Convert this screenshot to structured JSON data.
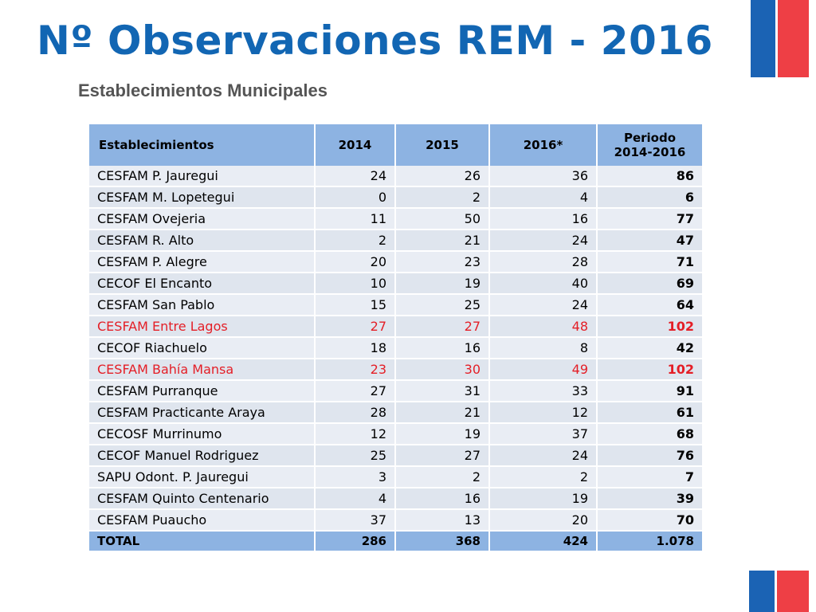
{
  "title": "Nº Observaciones REM - 2016",
  "subtitle": "Establecimientos Municipales",
  "colors": {
    "title": "#1266b3",
    "header": "#8db3e2",
    "highlight": "#e41e26",
    "flag_blue": "#1b63b4",
    "flag_red": "#ee3f45"
  },
  "table": {
    "headers": [
      "Establecimientos",
      "2014",
      "2015",
      "2016*",
      "Periodo\n2014-2016"
    ],
    "rows": [
      {
        "name": "CESFAM P. Jauregui",
        "y2014": "24",
        "y2015": "26",
        "y2016": "36",
        "total": "86",
        "highlight": false
      },
      {
        "name": "CESFAM M. Lopetegui",
        "y2014": "0",
        "y2015": "2",
        "y2016": "4",
        "total": "6",
        "highlight": false
      },
      {
        "name": "CESFAM Ovejeria",
        "y2014": "11",
        "y2015": "50",
        "y2016": "16",
        "total": "77",
        "highlight": false
      },
      {
        "name": "CESFAM R. Alto",
        "y2014": "2",
        "y2015": "21",
        "y2016": "24",
        "total": "47",
        "highlight": false
      },
      {
        "name": "CESFAM P. Alegre",
        "y2014": "20",
        "y2015": "23",
        "y2016": "28",
        "total": "71",
        "highlight": false
      },
      {
        "name": "CECOF El Encanto",
        "y2014": "10",
        "y2015": "19",
        "y2016": "40",
        "total": "69",
        "highlight": false
      },
      {
        "name": "CESFAM San Pablo",
        "y2014": "15",
        "y2015": "25",
        "y2016": "24",
        "total": "64",
        "highlight": false
      },
      {
        "name": "CESFAM Entre Lagos",
        "y2014": "27",
        "y2015": "27",
        "y2016": "48",
        "total": "102",
        "highlight": true
      },
      {
        "name": "CECOF Riachuelo",
        "y2014": "18",
        "y2015": "16",
        "y2016": "8",
        "total": "42",
        "highlight": false
      },
      {
        "name": "CESFAM Bahía Mansa",
        "y2014": "23",
        "y2015": "30",
        "y2016": "49",
        "total": "102",
        "highlight": true
      },
      {
        "name": "CESFAM Purranque",
        "y2014": "27",
        "y2015": "31",
        "y2016": "33",
        "total": "91",
        "highlight": false
      },
      {
        "name": "CESFAM Practicante Araya",
        "y2014": "28",
        "y2015": "21",
        "y2016": "12",
        "total": "61",
        "highlight": false
      },
      {
        "name": "CECOSF Murrinumo",
        "y2014": "12",
        "y2015": "19",
        "y2016": "37",
        "total": "68",
        "highlight": false
      },
      {
        "name": "CECOF Manuel Rodriguez",
        "y2014": "25",
        "y2015": "27",
        "y2016": "24",
        "total": "76",
        "highlight": false
      },
      {
        "name": "SAPU Odont. P. Jauregui",
        "y2014": "3",
        "y2015": "2",
        "y2016": "2",
        "total": "7",
        "highlight": false
      },
      {
        "name": "CESFAM Quinto Centenario",
        "y2014": "4",
        "y2015": "16",
        "y2016": "19",
        "total": "39",
        "highlight": false
      },
      {
        "name": "CESFAM Puaucho",
        "y2014": "37",
        "y2015": "13",
        "y2016": "20",
        "total": "70",
        "highlight": false
      }
    ],
    "totals": {
      "label": "TOTAL",
      "y2014": "286",
      "y2015": "368",
      "y2016": "424",
      "total": "1.078"
    }
  }
}
